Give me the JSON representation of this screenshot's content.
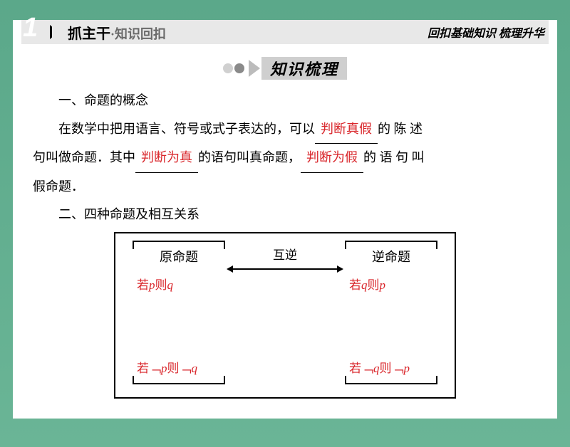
{
  "header": {
    "number": "1",
    "title_bold": "抓主干",
    "title_sub": "·知识回扣",
    "right": "回扣基础知识 梳理升华"
  },
  "section_ribbon": "知识梳理",
  "body": {
    "h1": "一、命题的概念",
    "p1_a": "在数学中把用语言、符号或式子表达的，可以",
    "blank1": "判断真假",
    "p1_b": "的 陈 述",
    "p2_a": "句叫做命题．其中",
    "blank2": "判断为真",
    "p2_b": "的语句叫真命题，",
    "blank3": "判断为假",
    "p2_c": "的 语 句 叫",
    "p3": "假命题．",
    "h2": "二、四种命题及相互关系"
  },
  "diagram": {
    "top_left_title": "原命题",
    "top_left_formula": "若p则q",
    "top_right_title": "逆命题",
    "top_right_formula": "若q则p",
    "bot_left_formula": "若﹁p则﹁q",
    "bot_right_formula": "若﹁q则﹁p",
    "rel_top": "互逆"
  },
  "colors": {
    "red": "#d9262b",
    "bg_top": "#5ba88a",
    "grey": "#cfcfcf"
  }
}
